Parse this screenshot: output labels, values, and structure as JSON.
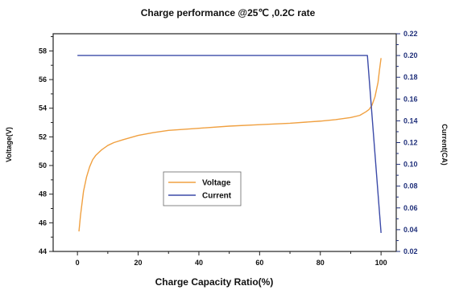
{
  "chart_data": {
    "type": "line",
    "title": "Charge performance @25℃ ,0.2C rate",
    "xlabel": "Charge Capacity Ratio(%)",
    "ylabel_left": "Voltage(V)",
    "ylabel_right": "Current(CA)",
    "xlim": [
      -8,
      105
    ],
    "ylim_left": [
      44,
      59.2
    ],
    "ylim_right": [
      0.02,
      0.22
    ],
    "x_ticks": [
      0,
      20,
      40,
      60,
      80,
      100
    ],
    "x_tick_labels": [
      "0",
      "20",
      "40",
      "60",
      "80",
      "100"
    ],
    "y_left_ticks": [
      44,
      46,
      48,
      50,
      52,
      54,
      56,
      58
    ],
    "y_left_tick_labels": [
      "44",
      "46",
      "48",
      "50",
      "52",
      "54",
      "56",
      "58"
    ],
    "y_right_ticks": [
      0.02,
      0.04,
      0.06,
      0.08,
      0.1,
      0.12,
      0.14,
      0.16,
      0.18,
      0.2,
      0.22
    ],
    "y_right_tick_labels": [
      "0.02",
      "0.04",
      "0.06",
      "0.08",
      "0.10",
      "0.12",
      "0.14",
      "0.16",
      "0.18",
      "0.20",
      "0.22"
    ],
    "legend_position": "lower-left inside",
    "grid": false,
    "colors": {
      "voltage": "#f0a040",
      "current": "#3b4aa8",
      "right_axis": "#1f2f7a",
      "axes": "#222222"
    },
    "series": [
      {
        "name": "Voltage",
        "axis": "left",
        "x": [
          0.5,
          1,
          2,
          3,
          4,
          5,
          6,
          8,
          10,
          12,
          15,
          20,
          25,
          30,
          40,
          50,
          60,
          70,
          80,
          85,
          90,
          93,
          95,
          96,
          97,
          98,
          99,
          99.5,
          100
        ],
        "values": [
          45.4,
          46.5,
          48.2,
          49.2,
          49.9,
          50.4,
          50.7,
          51.1,
          51.4,
          51.6,
          51.8,
          52.1,
          52.3,
          52.45,
          52.6,
          52.75,
          52.85,
          52.95,
          53.1,
          53.2,
          53.35,
          53.5,
          53.75,
          53.9,
          54.2,
          54.8,
          55.8,
          56.7,
          57.5
        ]
      },
      {
        "name": "Current",
        "axis": "right",
        "x": [
          0,
          95.5,
          100
        ],
        "values": [
          0.2,
          0.2,
          0.037
        ]
      }
    ]
  }
}
